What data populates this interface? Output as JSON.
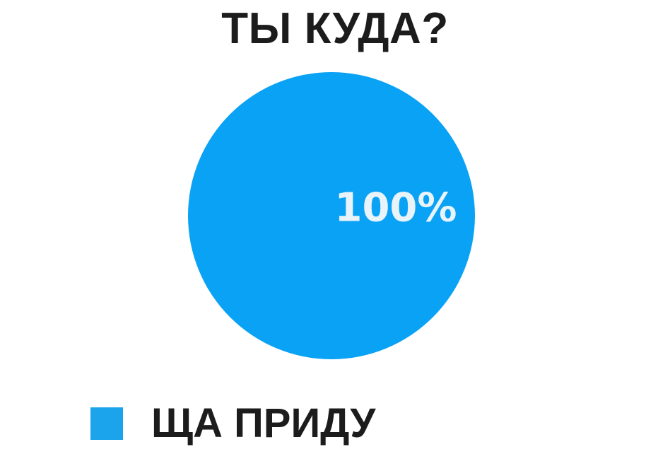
{
  "page": {
    "background": "#ffffff"
  },
  "chart_data": {
    "type": "pie",
    "title": "ТЫ КУДА?",
    "slices": [
      {
        "label": "ЩА ПРИДУ",
        "value": 100,
        "value_label": "100%",
        "color": "#0aa2f5"
      }
    ],
    "legend_position": "bottom-left",
    "notes": "Single full-circle pie slice covering 100% of the chart"
  },
  "colors": {
    "pie_slice": "#0aa2f5",
    "legend_swatch": "#1ba3ec",
    "title_text": "#1c1c1c",
    "value_label_text": "#e9f3fa",
    "legend_label_text": "#1c1c1c"
  }
}
